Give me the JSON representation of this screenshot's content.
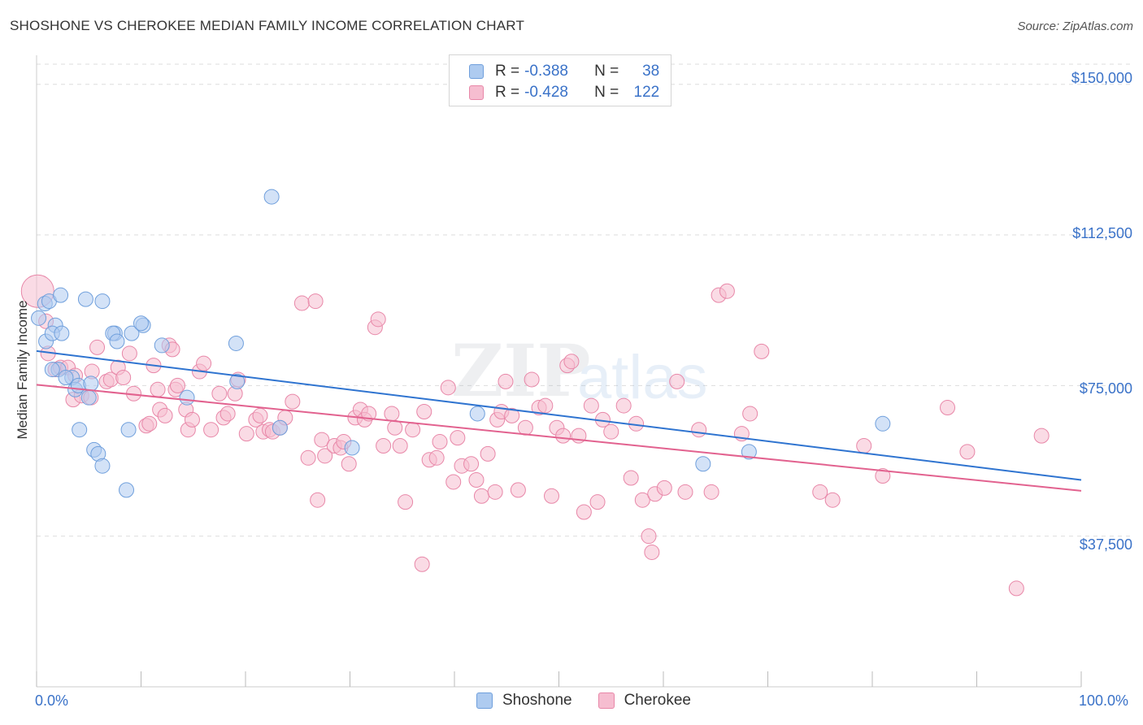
{
  "title": "SHOSHONE VS CHEROKEE MEDIAN FAMILY INCOME CORRELATION CHART",
  "source": "Source: ZipAtlas.com",
  "watermark": {
    "zip": "ZIP",
    "atlas": "atlas"
  },
  "legend": {
    "r_label": "R =",
    "n_label": "N =",
    "rows": [
      {
        "name": "Shoshone",
        "r": "-0.388",
        "n": "38"
      },
      {
        "name": "Cherokee",
        "r": "-0.428",
        "n": "122"
      }
    ]
  },
  "colors": {
    "shoshone_fill": "#aecbf0",
    "shoshone_stroke": "#6f9fdc",
    "shoshone_line": "#2f74d0",
    "cherokee_fill": "#f6bdd0",
    "cherokee_stroke": "#e887a8",
    "cherokee_line": "#e2628f",
    "axis_label": "#3a72c8",
    "grid": "#dddddd"
  },
  "chart_data": {
    "type": "scatter",
    "title": "SHOSHONE VS CHEROKEE MEDIAN FAMILY INCOME CORRELATION CHART",
    "xlabel": "",
    "ylabel": "Median Family Income",
    "xlim": [
      0,
      100
    ],
    "ylim": [
      0,
      155000
    ],
    "x_tick_labels": [
      "0.0%",
      "100.0%"
    ],
    "y_ticks": [
      37500,
      75000,
      112500,
      150000
    ],
    "y_tick_labels": [
      "$37,500",
      "$75,000",
      "$112,500",
      "$150,000"
    ],
    "grid": true,
    "series": [
      {
        "name": "Shoshone",
        "trend": {
          "x": [
            0,
            100
          ],
          "y": [
            83600,
            51500
          ]
        },
        "points": [
          [
            0.2,
            91800
          ],
          [
            0.8,
            95400
          ],
          [
            1.2,
            96000
          ],
          [
            0.9,
            86000
          ],
          [
            2.3,
            97500
          ],
          [
            1.8,
            90000
          ],
          [
            1.5,
            88000
          ],
          [
            2.4,
            88000
          ],
          [
            4.7,
            96500
          ],
          [
            6.3,
            96000
          ],
          [
            7.5,
            88000
          ],
          [
            9.1,
            88000
          ],
          [
            10.2,
            90000
          ],
          [
            10.0,
            90500
          ],
          [
            7.3,
            88000
          ],
          [
            7.7,
            86000
          ],
          [
            12.0,
            85000
          ],
          [
            19.1,
            85500
          ],
          [
            22.5,
            122000
          ],
          [
            2.1,
            79000
          ],
          [
            3.4,
            77000
          ],
          [
            2.8,
            77000
          ],
          [
            3.7,
            74000
          ],
          [
            4.0,
            75000
          ],
          [
            5.2,
            75500
          ],
          [
            5.0,
            72000
          ],
          [
            14.4,
            72000
          ],
          [
            1.5,
            79000
          ],
          [
            19.2,
            76000
          ],
          [
            4.1,
            64000
          ],
          [
            8.8,
            64000
          ],
          [
            23.3,
            64500
          ],
          [
            5.5,
            59000
          ],
          [
            5.9,
            58000
          ],
          [
            6.3,
            55000
          ],
          [
            8.6,
            49000
          ],
          [
            30.2,
            59500
          ],
          [
            42.2,
            68000
          ],
          [
            63.8,
            55500
          ],
          [
            68.2,
            58500
          ],
          [
            81.0,
            65500
          ]
        ]
      },
      {
        "name": "Cherokee",
        "trend": {
          "x": [
            0,
            100
          ],
          "y": [
            75200,
            48800
          ]
        },
        "points": [
          [
            0.1,
            98500
          ],
          [
            0.9,
            91000
          ],
          [
            1.1,
            83000
          ],
          [
            1.8,
            79000
          ],
          [
            2.3,
            79500
          ],
          [
            3.0,
            79500
          ],
          [
            3.7,
            77500
          ],
          [
            3.5,
            71500
          ],
          [
            4.3,
            72500
          ],
          [
            5.2,
            72000
          ],
          [
            5.3,
            78500
          ],
          [
            5.8,
            84500
          ],
          [
            6.7,
            76000
          ],
          [
            7.1,
            76500
          ],
          [
            7.8,
            79500
          ],
          [
            8.3,
            77000
          ],
          [
            8.9,
            83000
          ],
          [
            9.3,
            73000
          ],
          [
            10.5,
            65000
          ],
          [
            10.8,
            65500
          ],
          [
            11.2,
            80000
          ],
          [
            11.6,
            74000
          ],
          [
            11.8,
            69000
          ],
          [
            12.3,
            67500
          ],
          [
            12.7,
            85000
          ],
          [
            13.0,
            84000
          ],
          [
            13.3,
            74000
          ],
          [
            13.5,
            75000
          ],
          [
            14.3,
            69000
          ],
          [
            14.5,
            64000
          ],
          [
            14.9,
            66500
          ],
          [
            15.6,
            78500
          ],
          [
            16.0,
            80500
          ],
          [
            16.7,
            64000
          ],
          [
            17.5,
            73000
          ],
          [
            17.9,
            67000
          ],
          [
            18.3,
            68000
          ],
          [
            19.0,
            73000
          ],
          [
            19.3,
            76500
          ],
          [
            20.1,
            63000
          ],
          [
            21.0,
            66500
          ],
          [
            21.4,
            67500
          ],
          [
            21.7,
            63500
          ],
          [
            22.3,
            64000
          ],
          [
            22.6,
            63500
          ],
          [
            23.3,
            64500
          ],
          [
            23.8,
            67000
          ],
          [
            24.5,
            71000
          ],
          [
            25.4,
            95500
          ],
          [
            26.0,
            57000
          ],
          [
            26.7,
            96000
          ],
          [
            27.3,
            61500
          ],
          [
            27.6,
            57500
          ],
          [
            28.5,
            60000
          ],
          [
            29.1,
            59500
          ],
          [
            29.4,
            61000
          ],
          [
            29.9,
            55500
          ],
          [
            30.5,
            67000
          ],
          [
            31.0,
            69000
          ],
          [
            31.4,
            66500
          ],
          [
            31.8,
            68000
          ],
          [
            32.4,
            89500
          ],
          [
            32.7,
            91500
          ],
          [
            33.2,
            60000
          ],
          [
            34.0,
            68000
          ],
          [
            34.3,
            64500
          ],
          [
            34.8,
            60000
          ],
          [
            35.3,
            46000
          ],
          [
            36.0,
            64000
          ],
          [
            37.1,
            68500
          ],
          [
            37.6,
            56500
          ],
          [
            38.3,
            57000
          ],
          [
            38.6,
            61000
          ],
          [
            39.4,
            74500
          ],
          [
            39.9,
            51000
          ],
          [
            40.3,
            62000
          ],
          [
            40.7,
            55000
          ],
          [
            41.6,
            55500
          ],
          [
            42.1,
            51500
          ],
          [
            42.6,
            47500
          ],
          [
            43.2,
            58000
          ],
          [
            43.9,
            48500
          ],
          [
            44.1,
            66500
          ],
          [
            44.5,
            68500
          ],
          [
            44.9,
            76000
          ],
          [
            45.5,
            67500
          ],
          [
            46.1,
            49000
          ],
          [
            46.8,
            64500
          ],
          [
            47.4,
            76500
          ],
          [
            48.1,
            69500
          ],
          [
            48.7,
            70000
          ],
          [
            49.3,
            47500
          ],
          [
            49.8,
            64500
          ],
          [
            50.4,
            62500
          ],
          [
            50.8,
            80000
          ],
          [
            51.2,
            81000
          ],
          [
            51.9,
            62500
          ],
          [
            52.4,
            43500
          ],
          [
            53.1,
            70000
          ],
          [
            53.7,
            46000
          ],
          [
            54.2,
            66500
          ],
          [
            55.0,
            63500
          ],
          [
            56.2,
            70000
          ],
          [
            56.9,
            52000
          ],
          [
            57.4,
            65500
          ],
          [
            58.0,
            46500
          ],
          [
            58.6,
            37500
          ],
          [
            59.2,
            48000
          ],
          [
            60.1,
            49500
          ],
          [
            61.3,
            76000
          ],
          [
            62.1,
            48500
          ],
          [
            63.4,
            64000
          ],
          [
            64.6,
            48500
          ],
          [
            65.3,
            97500
          ],
          [
            66.1,
            98500
          ],
          [
            67.5,
            63000
          ],
          [
            68.3,
            68000
          ],
          [
            69.4,
            83500
          ],
          [
            75.0,
            48500
          ],
          [
            76.2,
            46500
          ],
          [
            79.2,
            60000
          ],
          [
            81.0,
            52500
          ],
          [
            87.2,
            69500
          ],
          [
            89.1,
            58500
          ],
          [
            93.8,
            24500
          ],
          [
            96.2,
            62500
          ],
          [
            36.9,
            30500
          ],
          [
            58.9,
            33500
          ],
          [
            26.9,
            46500
          ]
        ]
      }
    ]
  }
}
